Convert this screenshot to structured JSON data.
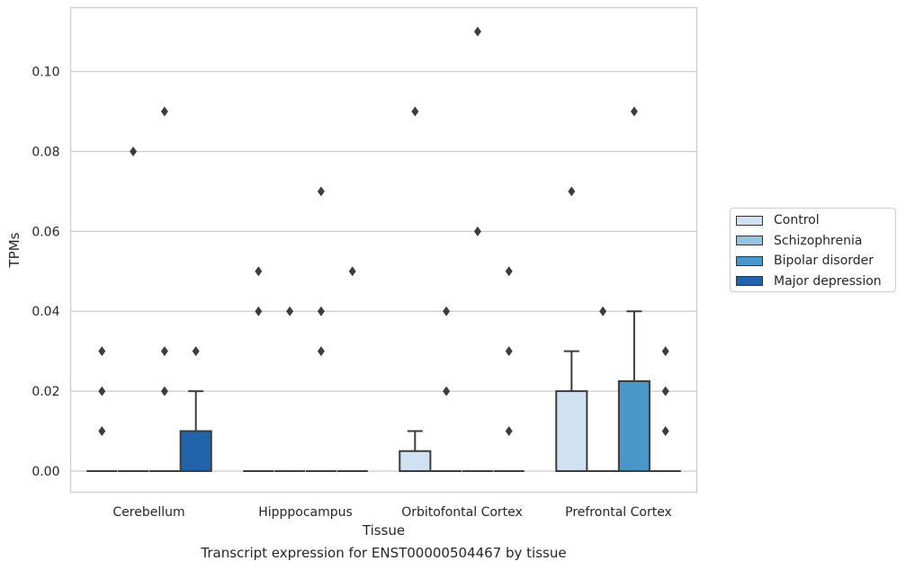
{
  "chart_data": {
    "type": "box",
    "title": "",
    "caption": "Transcript expression for ENST00000504467 by tissue",
    "xlabel": "Tissue",
    "ylabel": "TPMs",
    "ylim": [
      -0.0053,
      0.116
    ],
    "yticks": [
      "0.00",
      "0.02",
      "0.04",
      "0.06",
      "0.08",
      "0.10"
    ],
    "ytick_values": [
      0,
      0.02,
      0.04,
      0.06,
      0.08,
      0.1
    ],
    "grid": true,
    "legend_position": "right",
    "categories": [
      "Cerebellum",
      "Hipppocampus",
      "Orbitofontal Cortex",
      "Prefrontal Cortex"
    ],
    "series": [
      {
        "name": "Control",
        "color": "#d0e1f2",
        "boxes": [
          {
            "q1": 0,
            "median": 0,
            "q3": 0,
            "whislo": 0,
            "whishi": 0,
            "fliers": [
              0.01,
              0.02,
              0.03
            ]
          },
          {
            "q1": 0,
            "median": 0,
            "q3": 0,
            "whislo": 0,
            "whishi": 0,
            "fliers": [
              0.04,
              0.05
            ]
          },
          {
            "q1": 0,
            "median": 0,
            "q3": 0.005,
            "whislo": 0,
            "whishi": 0.01,
            "fliers": [
              0.09
            ]
          },
          {
            "q1": 0,
            "median": 0,
            "q3": 0.02,
            "whislo": 0,
            "whishi": 0.03,
            "fliers": [
              0.07
            ]
          }
        ]
      },
      {
        "name": "Schizophrenia",
        "color": "#94c4df",
        "boxes": [
          {
            "q1": 0,
            "median": 0,
            "q3": 0,
            "whislo": 0,
            "whishi": 0,
            "fliers": [
              0.08
            ]
          },
          {
            "q1": 0,
            "median": 0,
            "q3": 0,
            "whislo": 0,
            "whishi": 0,
            "fliers": [
              0.04
            ]
          },
          {
            "q1": 0,
            "median": 0,
            "q3": 0,
            "whislo": 0,
            "whishi": 0,
            "fliers": [
              0.02,
              0.04
            ]
          },
          {
            "q1": 0,
            "median": 0,
            "q3": 0,
            "whislo": 0,
            "whishi": 0,
            "fliers": [
              0.04
            ]
          }
        ]
      },
      {
        "name": "Bipolar disorder",
        "color": "#4a98c9",
        "boxes": [
          {
            "q1": 0,
            "median": 0,
            "q3": 0,
            "whislo": 0,
            "whishi": 0,
            "fliers": [
              0.02,
              0.03,
              0.09
            ]
          },
          {
            "q1": 0,
            "median": 0,
            "q3": 0,
            "whislo": 0,
            "whishi": 0,
            "fliers": [
              0.03,
              0.04,
              0.07
            ]
          },
          {
            "q1": 0,
            "median": 0,
            "q3": 0,
            "whislo": 0,
            "whishi": 0,
            "fliers": [
              0.06,
              0.11
            ]
          },
          {
            "q1": 0,
            "median": 0,
            "q3": 0.0225,
            "whislo": 0,
            "whishi": 0.04,
            "fliers": [
              0.09
            ]
          }
        ]
      },
      {
        "name": "Major depression",
        "color": "#2164ab",
        "boxes": [
          {
            "q1": 0,
            "median": 0,
            "q3": 0.01,
            "whislo": 0,
            "whishi": 0.02,
            "fliers": [
              0.03
            ]
          },
          {
            "q1": 0,
            "median": 0,
            "q3": 0,
            "whislo": 0,
            "whishi": 0,
            "fliers": [
              0.05
            ]
          },
          {
            "q1": 0,
            "median": 0,
            "q3": 0,
            "whislo": 0,
            "whishi": 0,
            "fliers": [
              0.01,
              0.03,
              0.05
            ]
          },
          {
            "q1": 0,
            "median": 0,
            "q3": 0,
            "whislo": 0,
            "whishi": 0,
            "fliers": [
              0.01,
              0.02,
              0.03
            ]
          }
        ]
      }
    ]
  }
}
